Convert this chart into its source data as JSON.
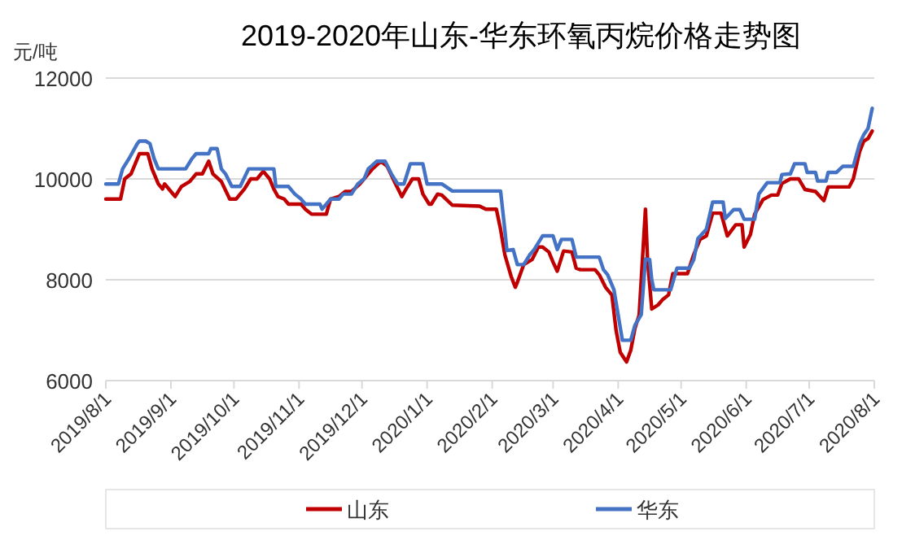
{
  "chart_data": {
    "type": "line",
    "title": "2019-2020年山东-华东环氧丙烷价格走势图",
    "ylabel": "元/吨",
    "xlim": [
      "2019-08-01",
      "2020-08-01"
    ],
    "xticks": [
      {
        "value": "2019-08-01",
        "label": "2019/8/1"
      },
      {
        "value": "2019-09-01",
        "label": "2019/9/1"
      },
      {
        "value": "2019-10-01",
        "label": "2019/10/1"
      },
      {
        "value": "2019-11-01",
        "label": "2019/11/1"
      },
      {
        "value": "2019-12-01",
        "label": "2019/12/1"
      },
      {
        "value": "2020-01-01",
        "label": "2020/1/1"
      },
      {
        "value": "2020-02-01",
        "label": "2020/2/1"
      },
      {
        "value": "2020-03-01",
        "label": "2020/3/1"
      },
      {
        "value": "2020-04-01",
        "label": "2020/4/1"
      },
      {
        "value": "2020-05-01",
        "label": "2020/5/1"
      },
      {
        "value": "2020-06-01",
        "label": "2020/6/1"
      },
      {
        "value": "2020-07-01",
        "label": "2020/7/1"
      },
      {
        "value": "2020-08-01",
        "label": "2020/8/1"
      }
    ],
    "ylim": [
      6000,
      12000
    ],
    "yticks": [
      6000,
      8000,
      10000,
      12000
    ],
    "grid": "y",
    "legend": "bottom",
    "marker": "none",
    "line_style": "solid",
    "series": [
      {
        "name": "山东",
        "color": "#c00000",
        "x": [
          "2019-08-01",
          "2019-08-08",
          "2019-08-10",
          "2019-08-13",
          "2019-08-17",
          "2019-08-21",
          "2019-08-23",
          "2019-08-26",
          "2019-08-28",
          "2019-08-29",
          "2019-09-01",
          "2019-09-03",
          "2019-09-06",
          "2019-09-10",
          "2019-09-13",
          "2019-09-16",
          "2019-09-19",
          "2019-09-21",
          "2019-09-25",
          "2019-09-29",
          "2019-10-02",
          "2019-10-06",
          "2019-10-09",
          "2019-10-12",
          "2019-10-15",
          "2019-10-18",
          "2019-10-20",
          "2019-10-22",
          "2019-10-25",
          "2019-10-27",
          "2019-11-02",
          "2019-11-04",
          "2019-11-07",
          "2019-11-14",
          "2019-11-16",
          "2019-11-20",
          "2019-11-23",
          "2019-11-26",
          "2019-11-30",
          "2019-12-02",
          "2019-12-06",
          "2019-12-10",
          "2019-12-13",
          "2019-12-17",
          "2019-12-20",
          "2019-12-22",
          "2019-12-25",
          "2019-12-28",
          "2019-12-30",
          "2020-01-02",
          "2020-01-03",
          "2020-01-06",
          "2020-01-08",
          "2020-01-13",
          "2020-01-26",
          "2020-01-29",
          "2020-02-03",
          "2020-02-05",
          "2020-02-07",
          "2020-02-10",
          "2020-02-12",
          "2020-02-13",
          "2020-02-16",
          "2020-02-20",
          "2020-02-23",
          "2020-02-25",
          "2020-02-28",
          "2020-03-01",
          "2020-03-03",
          "2020-03-06",
          "2020-03-10",
          "2020-03-12",
          "2020-03-14",
          "2020-03-21",
          "2020-03-23",
          "2020-03-26",
          "2020-03-29",
          "2020-03-31",
          "2020-04-02",
          "2020-04-05",
          "2020-04-07",
          "2020-04-09",
          "2020-04-11",
          "2020-04-14",
          "2020-04-15",
          "2020-04-17",
          "2020-04-20",
          "2020-04-22",
          "2020-04-25",
          "2020-04-27",
          "2020-05-04",
          "2020-05-07",
          "2020-05-10",
          "2020-05-13",
          "2020-05-16",
          "2020-05-20",
          "2020-05-23",
          "2020-05-27",
          "2020-05-30",
          "2020-05-31",
          "2020-06-03",
          "2020-06-05",
          "2020-06-09",
          "2020-06-13",
          "2020-06-16",
          "2020-06-18",
          "2020-06-22",
          "2020-06-26",
          "2020-06-29",
          "2020-07-04",
          "2020-07-08",
          "2020-07-10",
          "2020-07-20",
          "2020-07-22",
          "2020-07-25",
          "2020-07-27",
          "2020-07-29",
          "2020-07-31"
        ],
        "values": [
          9600,
          9600,
          10000,
          10100,
          10500,
          10500,
          10200,
          9900,
          9800,
          9900,
          9750,
          9650,
          9850,
          9950,
          10100,
          10100,
          10350,
          10100,
          9950,
          9600,
          9600,
          9800,
          10000,
          10000,
          10150,
          10000,
          9800,
          9650,
          9600,
          9500,
          9500,
          9400,
          9300,
          9300,
          9600,
          9650,
          9750,
          9750,
          9900,
          10000,
          10200,
          10350,
          10250,
          9900,
          9650,
          9800,
          10000,
          10000,
          9700,
          9500,
          9500,
          9700,
          9680,
          9480,
          9460,
          9400,
          9400,
          9000,
          8500,
          8070,
          7850,
          7950,
          8300,
          8400,
          8650,
          8650,
          8550,
          8350,
          8170,
          8570,
          8550,
          8230,
          8200,
          8200,
          8100,
          7850,
          7700,
          7000,
          6560,
          6370,
          6600,
          7040,
          7300,
          9400,
          8400,
          7420,
          7500,
          7600,
          7700,
          8120,
          8120,
          8500,
          8800,
          8870,
          9320,
          9320,
          8870,
          9090,
          9090,
          8650,
          8900,
          9300,
          9590,
          9680,
          9680,
          9910,
          10000,
          10000,
          9790,
          9750,
          9570,
          9840,
          9840,
          10000,
          10540,
          10750,
          10800,
          10950
        ]
      },
      {
        "name": "华东",
        "color": "#4472c4",
        "x": [
          "2019-08-01",
          "2019-08-07",
          "2019-08-09",
          "2019-08-12",
          "2019-08-16",
          "2019-08-17",
          "2019-08-20",
          "2019-08-22",
          "2019-08-24",
          "2019-08-26",
          "2019-09-08",
          "2019-09-11",
          "2019-09-13",
          "2019-09-19",
          "2019-09-20",
          "2019-09-23",
          "2019-09-25",
          "2019-09-27",
          "2019-09-30",
          "2019-10-04",
          "2019-10-08",
          "2019-10-20",
          "2019-10-21",
          "2019-10-27",
          "2019-10-30",
          "2019-11-02",
          "2019-11-04",
          "2019-11-11",
          "2019-11-12",
          "2019-11-16",
          "2019-11-20",
          "2019-11-22",
          "2019-11-26",
          "2019-11-29",
          "2019-12-02",
          "2019-12-04",
          "2019-12-08",
          "2019-12-12",
          "2019-12-15",
          "2019-12-18",
          "2019-12-21",
          "2019-12-24",
          "2019-12-30",
          "2020-01-01",
          "2020-01-08",
          "2020-01-13",
          "2020-02-05",
          "2020-02-07",
          "2020-02-08",
          "2020-02-11",
          "2020-02-13",
          "2020-02-16",
          "2020-02-19",
          "2020-02-21",
          "2020-02-25",
          "2020-03-01",
          "2020-03-03",
          "2020-03-05",
          "2020-03-10",
          "2020-03-12",
          "2020-03-23",
          "2020-03-25",
          "2020-03-27",
          "2020-03-30",
          "2020-04-01",
          "2020-04-03",
          "2020-04-07",
          "2020-04-09",
          "2020-04-12",
          "2020-04-14",
          "2020-04-16",
          "2020-04-17",
          "2020-04-18",
          "2020-04-26",
          "2020-04-29",
          "2020-05-05",
          "2020-05-07",
          "2020-05-09",
          "2020-05-13",
          "2020-05-16",
          "2020-05-21",
          "2020-05-22",
          "2020-05-26",
          "2020-05-29",
          "2020-05-31",
          "2020-06-05",
          "2020-06-07",
          "2020-06-11",
          "2020-06-17",
          "2020-06-18",
          "2020-06-22",
          "2020-06-24",
          "2020-06-29",
          "2020-06-30",
          "2020-07-04",
          "2020-07-05",
          "2020-07-09",
          "2020-07-10",
          "2020-07-14",
          "2020-07-17",
          "2020-07-22",
          "2020-07-25",
          "2020-07-27",
          "2020-07-29",
          "2020-07-31"
        ],
        "values": [
          9900,
          9900,
          10200,
          10400,
          10700,
          10750,
          10750,
          10700,
          10400,
          10200,
          10200,
          10400,
          10500,
          10500,
          10600,
          10600,
          10200,
          10100,
          9850,
          9850,
          10200,
          10200,
          9850,
          9850,
          9700,
          9600,
          9500,
          9500,
          9400,
          9600,
          9600,
          9700,
          9700,
          9900,
          10000,
          10200,
          10350,
          10350,
          10100,
          9900,
          9900,
          10300,
          10300,
          9900,
          9900,
          9760,
          9760,
          9000,
          8580,
          8600,
          8300,
          8300,
          8500,
          8600,
          8870,
          8870,
          8600,
          8800,
          8800,
          8450,
          8450,
          8200,
          8100,
          7800,
          7300,
          6800,
          6800,
          7100,
          7310,
          8410,
          8400,
          8000,
          7800,
          7800,
          8230,
          8230,
          8400,
          8820,
          9000,
          9540,
          9540,
          9215,
          9390,
          9390,
          9200,
          9200,
          9700,
          9925,
          9925,
          10086,
          10100,
          10300,
          10300,
          10130,
          10130,
          9957,
          9957,
          10130,
          10130,
          10250,
          10250,
          10700,
          10880,
          11000,
          11400
        ]
      }
    ]
  }
}
